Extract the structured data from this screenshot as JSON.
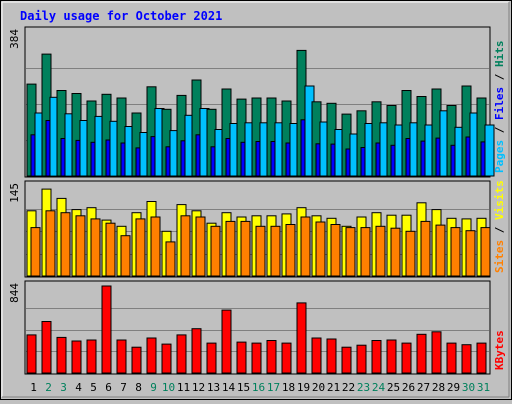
{
  "title": "Daily usage for October 2021",
  "colors": {
    "background": "#c0c0c0",
    "title": "#0000ff",
    "hits": "#00805c",
    "files": "#0000ff",
    "pages": "#00c0ff",
    "visits": "#ffff00",
    "sites": "#ff8000",
    "kbytes": "#ff0000",
    "day_normal": "#000000",
    "day_weekend": "#00805c"
  },
  "chart_data": [
    {
      "type": "bar",
      "panel": "hits-files-pages",
      "ymax_label": "384",
      "ylim": [
        0,
        384
      ],
      "grid": true,
      "categories": [
        "1",
        "2",
        "3",
        "4",
        "5",
        "6",
        "7",
        "8",
        "9",
        "10",
        "11",
        "12",
        "13",
        "14",
        "15",
        "16",
        "17",
        "18",
        "19",
        "20",
        "21",
        "22",
        "23",
        "24",
        "25",
        "26",
        "27",
        "28",
        "29",
        "30",
        "31"
      ],
      "legend": [
        {
          "text": "Pages",
          "color": "#00c0ff"
        },
        {
          "text": " / ",
          "color": "#000000"
        },
        {
          "text": "Files",
          "color": "#0000ff"
        },
        {
          "text": " / ",
          "color": "#000000"
        },
        {
          "text": "Hits",
          "color": "#00805c"
        }
      ],
      "series": [
        {
          "name": "Hits",
          "color": "#00805c",
          "values": [
            245,
            325,
            228,
            220,
            200,
            218,
            208,
            168,
            238,
            178,
            215,
            256,
            178,
            232,
            205,
            208,
            208,
            200,
            335,
            198,
            194,
            165,
            174,
            198,
            188,
            228,
            212,
            232,
            188,
            240,
            208
          ]
        },
        {
          "name": "Files",
          "color": "#0000ff",
          "values": [
            110,
            148,
            100,
            95,
            90,
            96,
            88,
            75,
            105,
            78,
            94,
            110,
            78,
            100,
            90,
            92,
            92,
            88,
            150,
            86,
            85,
            72,
            76,
            88,
            82,
            100,
            93,
            101,
            82,
            104,
            91
          ]
        },
        {
          "name": "Pages",
          "color": "#00c0ff",
          "values": [
            168,
            210,
            166,
            148,
            159,
            146,
            132,
            116,
            180,
            121,
            162,
            180,
            124,
            140,
            142,
            142,
            142,
            140,
            240,
            144,
            124,
            112,
            140,
            142,
            136,
            142,
            136,
            174,
            130,
            168,
            136
          ]
        }
      ]
    },
    {
      "type": "bar",
      "panel": "visits-sites",
      "ymax_label": "145",
      "ylim": [
        0,
        145
      ],
      "grid": true,
      "categories": [
        "1",
        "2",
        "3",
        "4",
        "5",
        "6",
        "7",
        "8",
        "9",
        "10",
        "11",
        "12",
        "13",
        "14",
        "15",
        "16",
        "17",
        "18",
        "19",
        "20",
        "21",
        "22",
        "23",
        "24",
        "25",
        "26",
        "27",
        "28",
        "29",
        "30",
        "31"
      ],
      "legend": [
        {
          "text": "Sites",
          "color": "#ff8000"
        },
        {
          "text": " / ",
          "color": "#000000"
        },
        {
          "text": "Visits",
          "color": "#ffff00"
        }
      ],
      "series": [
        {
          "name": "Visits",
          "color": "#ffff00",
          "values": [
            105,
            140,
            125,
            107,
            110,
            90,
            80,
            102,
            120,
            72,
            115,
            105,
            85,
            102,
            95,
            97,
            97,
            100,
            110,
            97,
            93,
            80,
            95,
            102,
            98,
            98,
            118,
            107,
            93,
            92,
            93
          ]
        },
        {
          "name": "Sites",
          "color": "#ff8000",
          "values": [
            78,
            105,
            102,
            97,
            92,
            85,
            65,
            92,
            95,
            55,
            97,
            95,
            80,
            88,
            88,
            80,
            80,
            83,
            95,
            87,
            83,
            78,
            78,
            80,
            77,
            72,
            88,
            82,
            78,
            73,
            78
          ]
        }
      ]
    },
    {
      "type": "bar",
      "panel": "kbytes",
      "ymax_label": "844",
      "ylim": [
        0,
        844
      ],
      "grid": true,
      "categories": [
        "1",
        "2",
        "3",
        "4",
        "5",
        "6",
        "7",
        "8",
        "9",
        "10",
        "11",
        "12",
        "13",
        "14",
        "15",
        "16",
        "17",
        "18",
        "19",
        "20",
        "21",
        "22",
        "23",
        "24",
        "25",
        "26",
        "27",
        "28",
        "29",
        "30",
        "31"
      ],
      "legend": [
        {
          "text": "KBytes",
          "color": "#ff0000"
        }
      ],
      "series": [
        {
          "name": "KBytes",
          "color": "#ff0000",
          "values": [
            370,
            500,
            345,
            310,
            320,
            844,
            320,
            250,
            340,
            280,
            370,
            430,
            290,
            610,
            300,
            290,
            315,
            290,
            680,
            340,
            330,
            250,
            270,
            315,
            320,
            290,
            375,
            400,
            290,
            275,
            290
          ]
        }
      ]
    }
  ],
  "weekend_days": [
    "2",
    "3",
    "9",
    "10",
    "16",
    "17",
    "23",
    "24",
    "30",
    "31"
  ]
}
